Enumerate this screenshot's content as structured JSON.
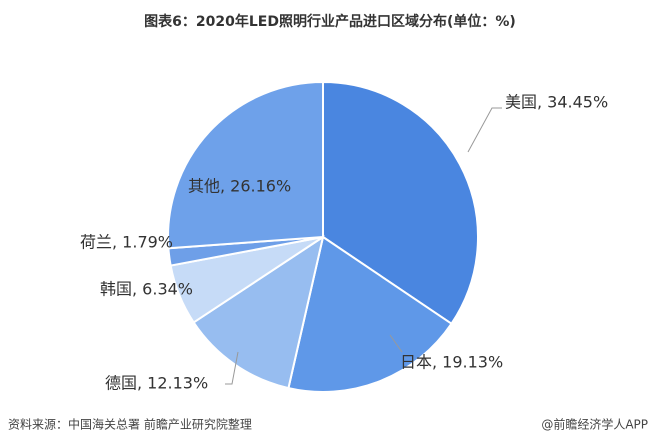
{
  "chart_data": {
    "type": "pie",
    "title": "图表6：2020年LED照明行业产品进口区域分布(单位：%)",
    "values": [
      34.45,
      19.13,
      12.13,
      6.34,
      1.79,
      26.16
    ],
    "value_labels": [
      "美国, 34.45%",
      "日本, 19.13%",
      "德国, 12.13%",
      "韩国, 6.34%",
      "荷兰, 1.79%",
      "其他, 26.16%"
    ],
    "colors": [
      "#4a86e0",
      "#5f98e8",
      "#97bdf0",
      "#c6dbf7",
      "#6e9fe8",
      "#6ea1ea"
    ],
    "source": "资料来源：中国海关总署 前瞻产业研究院整理",
    "credit": "@前瞻经济学人APP"
  }
}
